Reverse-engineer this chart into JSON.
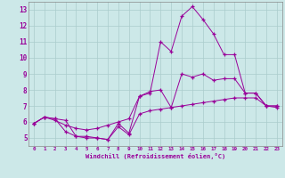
{
  "background_color": "#cce8e8",
  "grid_color": "#aacccc",
  "line_color": "#990099",
  "marker": "+",
  "xlabel": "Windchill (Refroidissement éolien,°C)",
  "xlim": [
    -0.5,
    23.5
  ],
  "ylim": [
    4.5,
    13.5
  ],
  "yticks": [
    5,
    6,
    7,
    8,
    9,
    10,
    11,
    12,
    13
  ],
  "xticks": [
    0,
    1,
    2,
    3,
    4,
    5,
    6,
    7,
    8,
    9,
    10,
    11,
    12,
    13,
    14,
    15,
    16,
    17,
    18,
    19,
    20,
    21,
    22,
    23
  ],
  "xtick_labels": [
    "0",
    "1",
    "2",
    "3",
    "4",
    "5",
    "6",
    "7",
    "8",
    "9",
    "10",
    "11",
    "12",
    "13",
    "14",
    "15",
    "16",
    "17",
    "18",
    "19",
    "20",
    "21",
    "22",
    "23"
  ],
  "series": [
    [
      5.9,
      6.3,
      6.2,
      5.4,
      5.1,
      5.1,
      5.0,
      4.9,
      5.7,
      5.2,
      6.5,
      6.7,
      6.8,
      6.9,
      7.0,
      7.1,
      7.2,
      7.3,
      7.4,
      7.5,
      7.5,
      7.5,
      7.0,
      6.9
    ],
    [
      5.9,
      6.3,
      6.1,
      5.8,
      5.6,
      5.5,
      5.6,
      5.8,
      6.0,
      6.2,
      7.6,
      7.9,
      8.0,
      6.9,
      9.0,
      8.8,
      9.0,
      8.6,
      8.7,
      8.7,
      7.8,
      7.8,
      7.0,
      7.0
    ],
    [
      5.9,
      6.3,
      6.2,
      6.1,
      5.1,
      5.0,
      5.0,
      4.9,
      5.9,
      5.3,
      7.6,
      7.8,
      11.0,
      10.4,
      12.6,
      13.2,
      12.4,
      11.5,
      10.2,
      10.2,
      7.8,
      7.8,
      7.0,
      7.0
    ]
  ]
}
